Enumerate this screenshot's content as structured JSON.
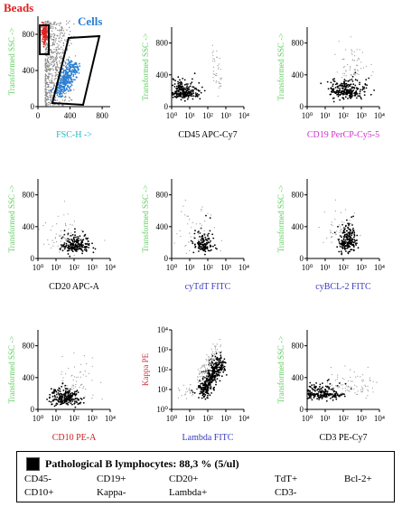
{
  "annotations": {
    "beads": "Beads",
    "cells": "Cells"
  },
  "colors": {
    "beads": "#e02020",
    "cells": "#2a7fd4",
    "ssc": "#5fcf5f",
    "fsc": "#23b8c8",
    "gated": "#000000",
    "other": "#9a9a9a"
  },
  "chart_data": [
    {
      "type": "scatter",
      "xlabel": "FSC-H ->",
      "xlabel_color": "#23b8c8",
      "ylabel": "Transformed SSC ->",
      "ylabel_color": "#5fcf5f",
      "xscale": "linear",
      "xticks": [
        "0",
        "400",
        "800"
      ],
      "xlim": [
        0,
        900
      ],
      "yticks": [
        "0",
        "400",
        "800"
      ],
      "ylim": [
        0,
        1000
      ],
      "series": [
        {
          "name": "Beads",
          "color": "#e02020",
          "x_range": [
            40,
            110
          ],
          "y_range": [
            680,
            880
          ]
        },
        {
          "name": "Cells",
          "color": "#2a7fd4",
          "x_range": [
            200,
            650
          ],
          "y_range": [
            80,
            420
          ]
        }
      ]
    },
    {
      "type": "scatter",
      "xlabel": "CD45 APC-Cy7",
      "xlabel_color": "#000000",
      "ylabel": "Transformed SSC ->",
      "ylabel_color": "#5fcf5f",
      "xscale": "log",
      "xticks": [
        "10⁰",
        "10¹",
        "10²",
        "10³",
        "10⁴"
      ],
      "yticks": [
        "0",
        "400",
        "800"
      ],
      "ylim": [
        0,
        1000
      ]
    },
    {
      "type": "scatter",
      "xlabel": "CD19 PerCP-Cy5-5",
      "xlabel_color": "#cc33cc",
      "ylabel": "Transformed SSC ->",
      "ylabel_color": "#5fcf5f",
      "xscale": "log",
      "xticks": [
        "10⁰",
        "10¹",
        "10²",
        "10³",
        "10⁴"
      ],
      "yticks": [
        "0",
        "400",
        "800"
      ],
      "ylim": [
        0,
        1000
      ]
    },
    {
      "type": "scatter",
      "xlabel": "CD20 APC-A",
      "xlabel_color": "#000000",
      "ylabel": "Transformed SSC ->",
      "ylabel_color": "#5fcf5f",
      "xscale": "log",
      "xticks": [
        "10⁰",
        "10¹",
        "10²",
        "10³",
        "10⁴"
      ],
      "yticks": [
        "0",
        "400",
        "800"
      ],
      "ylim": [
        0,
        1000
      ]
    },
    {
      "type": "scatter",
      "xlabel": "cyTdT FITC",
      "xlabel_color": "#3a3ac0",
      "ylabel": "Transformed SSC ->",
      "ylabel_color": "#5fcf5f",
      "xscale": "log",
      "xticks": [
        "10⁰",
        "10¹",
        "10²",
        "10³",
        "10⁴"
      ],
      "yticks": [
        "0",
        "400",
        "800"
      ],
      "ylim": [
        0,
        1000
      ]
    },
    {
      "type": "scatter",
      "xlabel": "cyBCL-2 FITC",
      "xlabel_color": "#3a3ac0",
      "ylabel": "Transformed SSC ->",
      "ylabel_color": "#5fcf5f",
      "xscale": "log",
      "xticks": [
        "10⁰",
        "10¹",
        "10²",
        "10³",
        "10⁴"
      ],
      "yticks": [
        "0",
        "400",
        "800"
      ],
      "ylim": [
        0,
        1000
      ]
    },
    {
      "type": "scatter",
      "xlabel": "CD10 PE-A",
      "xlabel_color": "#cc2222",
      "ylabel": "Transformed SSC ->",
      "ylabel_color": "#5fcf5f",
      "xscale": "log",
      "xticks": [
        "10⁰",
        "10¹",
        "10²",
        "10³",
        "10⁴"
      ],
      "yticks": [
        "0",
        "400",
        "800"
      ],
      "ylim": [
        0,
        1000
      ]
    },
    {
      "type": "scatter",
      "xlabel": "Lambda FITC",
      "xlabel_color": "#3a3ac0",
      "ylabel": "Kappa PE",
      "ylabel_color": "#cc3344",
      "xscale": "log",
      "yscale": "log",
      "xticks": [
        "10⁰",
        "10¹",
        "10²",
        "10³",
        "10⁴"
      ],
      "yticks": [
        "10⁰",
        "10¹",
        "10²",
        "10³",
        "10⁴"
      ]
    },
    {
      "type": "scatter",
      "xlabel": "CD3 PE-Cy7",
      "xlabel_color": "#000000",
      "ylabel": "Transformed SSC ->",
      "ylabel_color": "#5fcf5f",
      "xscale": "log",
      "xticks": [
        "10⁰",
        "10¹",
        "10²",
        "10³",
        "10⁴"
      ],
      "yticks": [
        "0",
        "400",
        "800"
      ],
      "ylim": [
        0,
        1000
      ]
    }
  ],
  "legend": {
    "title": "Pathological B lymphocytes: 88,3 % (5/ul)",
    "markers": [
      "CD45-",
      "CD19+",
      "CD20+",
      "TdT+",
      "Bcl-2+",
      "CD10+",
      "Kappa-",
      "Lambda+",
      "CD3-"
    ]
  }
}
